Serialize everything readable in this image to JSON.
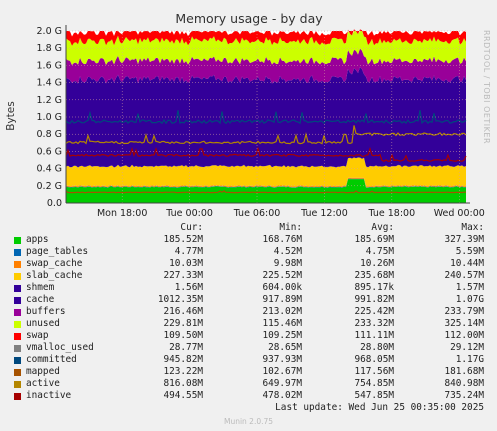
{
  "chart_data": {
    "type": "area",
    "title": "Memory usage - by day",
    "ylabel": "Bytes",
    "side_label": "RRDTOOL / TOBI OETIKER",
    "ylim": [
      0,
      2000000000
    ],
    "y_ticks": [
      {
        "value": 0,
        "label": "0.0"
      },
      {
        "value": 200000000,
        "label": "0.2 G"
      },
      {
        "value": 400000000,
        "label": "0.4 G"
      },
      {
        "value": 600000000,
        "label": "0.6 G"
      },
      {
        "value": 800000000,
        "label": "0.8 G"
      },
      {
        "value": 1000000000,
        "label": "1.0 G"
      },
      {
        "value": 1200000000,
        "label": "1.2 G"
      },
      {
        "value": 1400000000,
        "label": "1.4 G"
      },
      {
        "value": 1600000000,
        "label": "1.6 G"
      },
      {
        "value": 1800000000,
        "label": "1.8 G"
      },
      {
        "value": 2000000000,
        "label": "2.0 G"
      }
    ],
    "x_range": [
      "Mon 13:00",
      "Wed 00:35"
    ],
    "x_ticks": [
      {
        "hours": 5,
        "label": "Mon 18:00"
      },
      {
        "hours": 11,
        "label": "Tue 00:00"
      },
      {
        "hours": 17,
        "label": "Tue 06:00"
      },
      {
        "hours": 23,
        "label": "Tue 12:00"
      },
      {
        "hours": 29,
        "label": "Tue 18:00"
      },
      {
        "hours": 35,
        "label": "Wed 00:00"
      }
    ],
    "x_total_hours": 35.6,
    "grid": true,
    "stack_series": [
      {
        "name": "apps",
        "color": "#00cc00",
        "value": 185520000
      },
      {
        "name": "page_tables",
        "color": "#0066b3",
        "value": 4770000
      },
      {
        "name": "swap_cache",
        "color": "#ff8000",
        "value": 10030000
      },
      {
        "name": "slab_cache",
        "color": "#ffcc00",
        "value": 227330000
      },
      {
        "name": "shmem",
        "color": "#330099",
        "value": 1560000
      },
      {
        "name": "cache",
        "color": "#330099",
        "value": 1012350000
      },
      {
        "name": "buffers",
        "color": "#990099",
        "value": 216460000
      },
      {
        "name": "unused",
        "color": "#ccff00",
        "value": 229810000
      },
      {
        "name": "swap",
        "color": "#ff0000",
        "value": 109500000
      }
    ],
    "line_series": [
      {
        "name": "committed",
        "color": "#00487d",
        "value": 945820000
      },
      {
        "name": "mapped",
        "color": "#a65200",
        "value": 123220000
      },
      {
        "name": "active",
        "color": "#b38600",
        "value": 816080000,
        "late_value": 800000000
      },
      {
        "name": "inactive",
        "color": "#a60000",
        "value": 494550000
      }
    ],
    "legend_header": [
      "Cur:",
      "Min:",
      "Avg:",
      "Max:"
    ],
    "legend": [
      {
        "name": "apps",
        "color": "#00cc00",
        "cur": "185.52M",
        "min": "168.76M",
        "avg": "185.69M",
        "max": "327.39M"
      },
      {
        "name": "page_tables",
        "color": "#0066b3",
        "cur": "4.77M",
        "min": "4.52M",
        "avg": "4.75M",
        "max": "5.59M"
      },
      {
        "name": "swap_cache",
        "color": "#ff8000",
        "cur": "10.03M",
        "min": "9.98M",
        "avg": "10.26M",
        "max": "10.44M"
      },
      {
        "name": "slab_cache",
        "color": "#ffcc00",
        "cur": "227.33M",
        "min": "225.52M",
        "avg": "235.68M",
        "max": "240.57M"
      },
      {
        "name": "shmem",
        "color": "#330099",
        "cur": "1.56M",
        "min": "604.00k",
        "avg": "895.17k",
        "max": "1.57M"
      },
      {
        "name": "cache",
        "color": "#330099",
        "cur": "1012.35M",
        "min": "917.89M",
        "avg": "991.82M",
        "max": "1.07G"
      },
      {
        "name": "buffers",
        "color": "#990099",
        "cur": "216.46M",
        "min": "213.02M",
        "avg": "225.42M",
        "max": "233.79M"
      },
      {
        "name": "unused",
        "color": "#ccff00",
        "cur": "229.81M",
        "min": "115.46M",
        "avg": "233.32M",
        "max": "325.14M"
      },
      {
        "name": "swap",
        "color": "#ff0000",
        "cur": "109.50M",
        "min": "109.25M",
        "avg": "111.11M",
        "max": "112.00M"
      },
      {
        "name": "vmalloc_used",
        "color": "#808080",
        "cur": "28.77M",
        "min": "28.65M",
        "avg": "28.80M",
        "max": "29.12M"
      },
      {
        "name": "committed",
        "color": "#00487d",
        "cur": "945.82M",
        "min": "937.93M",
        "avg": "968.05M",
        "max": "1.17G"
      },
      {
        "name": "mapped",
        "color": "#a65200",
        "cur": "123.22M",
        "min": "102.67M",
        "avg": "117.56M",
        "max": "181.68M"
      },
      {
        "name": "active",
        "color": "#b38600",
        "cur": "816.08M",
        "min": "649.97M",
        "avg": "754.85M",
        "max": "840.98M"
      },
      {
        "name": "inactive",
        "color": "#a60000",
        "cur": "494.55M",
        "min": "478.02M",
        "avg": "547.85M",
        "max": "735.24M"
      }
    ]
  },
  "last_update": "Last update: Wed Jun 25 00:35:00 2025",
  "footer": "Munin 2.0.75"
}
